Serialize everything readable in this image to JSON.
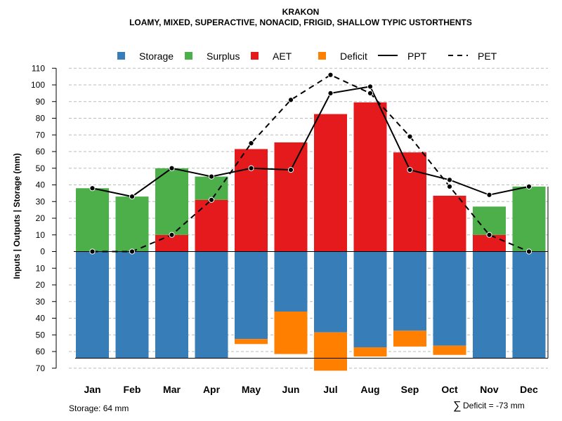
{
  "chart_data": {
    "type": "bar",
    "title": "KRAKON",
    "subtitle": "LOAMY, MIXED, SUPERACTIVE, NONACID, FRIGID, SHALLOW TYPIC USTORTHENTS",
    "ylabel": "Inputs | Outputs | Storage    (mm)",
    "categories": [
      "Jan",
      "Feb",
      "Mar",
      "Apr",
      "May",
      "Jun",
      "Jul",
      "Aug",
      "Sep",
      "Oct",
      "Nov",
      "Dec"
    ],
    "ylim": [
      -70,
      110
    ],
    "y_ticks": [
      110,
      100,
      90,
      80,
      70,
      60,
      50,
      40,
      30,
      20,
      10,
      0,
      -10,
      -20,
      -30,
      -40,
      -50,
      -60,
      -70
    ],
    "y_tick_labels": [
      "110",
      "100",
      "90",
      "80",
      "70",
      "60",
      "50",
      "40",
      "30",
      "20",
      "10",
      "0",
      "10",
      "20",
      "30",
      "40",
      "50",
      "60",
      "70"
    ],
    "grid": true,
    "legend_position": "top",
    "legend": [
      {
        "name": "Storage",
        "type": "box"
      },
      {
        "name": "Surplus",
        "type": "box"
      },
      {
        "name": "AET",
        "type": "box"
      },
      {
        "name": "Deficit",
        "type": "box"
      },
      {
        "name": "PPT",
        "type": "solid-line"
      },
      {
        "name": "PET",
        "type": "dashed-line"
      }
    ],
    "series": [
      {
        "name": "Storage",
        "values": [
          64,
          64,
          64,
          64,
          52.5,
          36,
          48.5,
          57.5,
          47.5,
          56.5,
          64,
          64
        ]
      },
      {
        "name": "Surplus",
        "values": [
          38,
          33,
          40,
          14,
          0,
          0,
          0,
          0,
          0,
          0,
          17,
          39
        ]
      },
      {
        "name": "AET",
        "values": [
          0,
          0,
          10,
          31,
          61.5,
          65.5,
          82.5,
          89.5,
          59.5,
          33.5,
          10,
          0
        ]
      },
      {
        "name": "Deficit",
        "values": [
          0,
          0,
          0,
          0,
          3,
          25.5,
          23,
          5.5,
          9.5,
          5.5,
          0,
          0
        ]
      },
      {
        "name": "PPT",
        "values": [
          38,
          33,
          50,
          45,
          50,
          49,
          95,
          99,
          49,
          43,
          34,
          39
        ]
      },
      {
        "name": "PET",
        "values": [
          0,
          0,
          10,
          31,
          65,
          91,
          106,
          95,
          69,
          39,
          10,
          0
        ]
      }
    ],
    "storage_capacity": 64
  },
  "colors": {
    "storage": "#377eb8",
    "surplus": "#4daf4a",
    "aet": "#e41a1c",
    "deficit": "#ff7f00",
    "grid": "#bbbbbb"
  },
  "footer": {
    "storage_text": "Storage: 64 mm",
    "deficit_symbol": "∑",
    "deficit_text": "Deficit = -73 mm"
  }
}
